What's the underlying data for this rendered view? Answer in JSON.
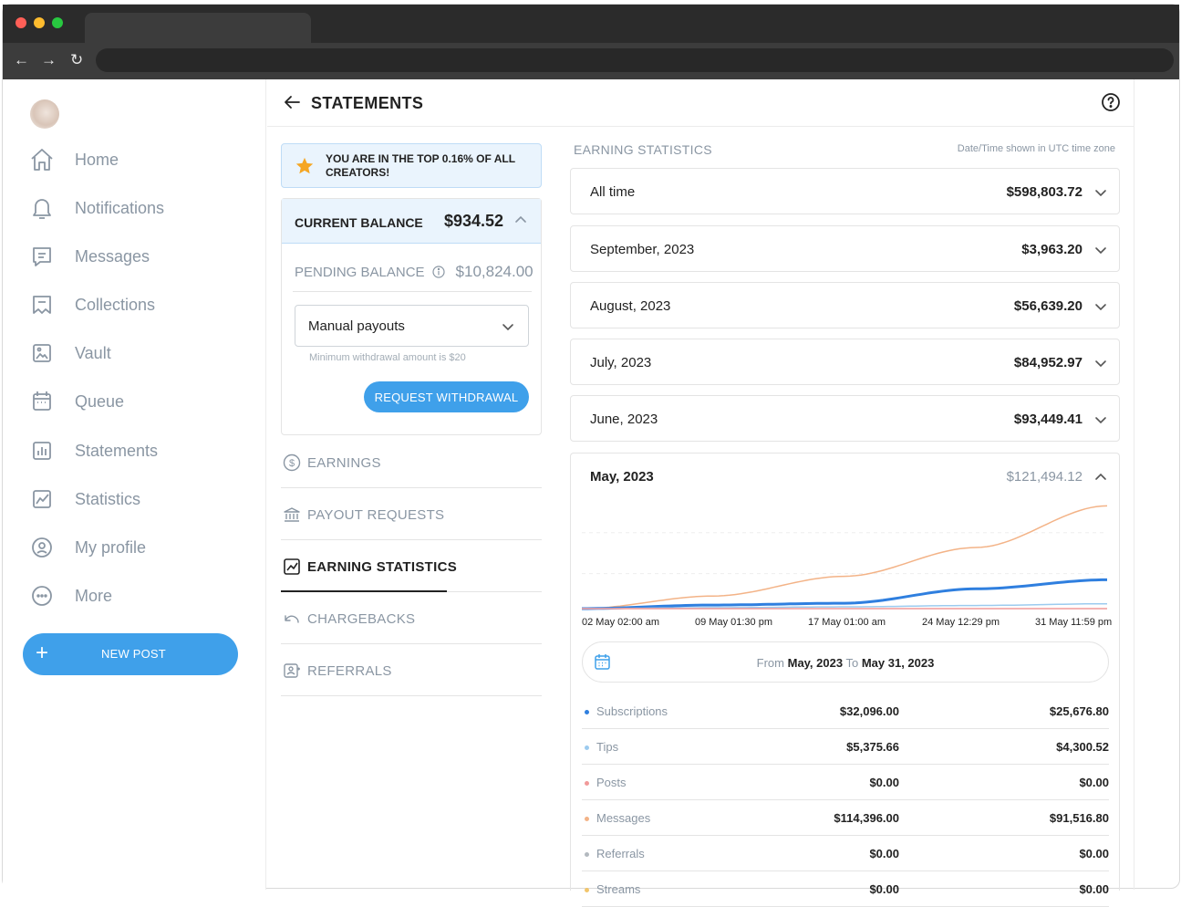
{
  "sidebar": {
    "items": [
      {
        "label": "Home",
        "icon": "home-icon"
      },
      {
        "label": "Notifications",
        "icon": "bell-icon"
      },
      {
        "label": "Messages",
        "icon": "message-icon"
      },
      {
        "label": "Collections",
        "icon": "collections-icon"
      },
      {
        "label": "Vault",
        "icon": "vault-icon"
      },
      {
        "label": "Queue",
        "icon": "calendar-icon"
      },
      {
        "label": "Statements",
        "icon": "statements-icon"
      },
      {
        "label": "Statistics",
        "icon": "statistics-icon"
      },
      {
        "label": "My profile",
        "icon": "profile-icon"
      },
      {
        "label": "More",
        "icon": "more-icon"
      }
    ],
    "new_post": "NEW POST"
  },
  "header": {
    "title": "STATEMENTS"
  },
  "banner": {
    "text": "YOU ARE IN THE TOP 0.16% OF ALL CREATORS!"
  },
  "balance": {
    "current_label": "CURRENT BALANCE",
    "current_amount": "$934.52",
    "pending_label": "PENDING BALANCE",
    "pending_amount": "$10,824.00",
    "payout_mode": "Manual payouts",
    "min_note": "Minimum withdrawal amount is $20",
    "withdraw_label": "REQUEST WITHDRAWAL"
  },
  "menu": [
    {
      "label": "EARNINGS",
      "icon": "dollar-circle-icon"
    },
    {
      "label": "PAYOUT REQUESTS",
      "icon": "bank-icon"
    },
    {
      "label": "EARNING STATISTICS",
      "icon": "chart-icon"
    },
    {
      "label": "CHARGEBACKS",
      "icon": "undo-icon"
    },
    {
      "label": "REFERRALS",
      "icon": "referrals-icon"
    }
  ],
  "stats": {
    "title": "EARNING STATISTICS",
    "utc_note": "Date/Time shown in UTC time zone",
    "periods": [
      {
        "label": "All time",
        "amount": "$598,803.72"
      },
      {
        "label": "September, 2023",
        "amount": "$3,963.20"
      },
      {
        "label": "August, 2023",
        "amount": "$56,639.20"
      },
      {
        "label": "July, 2023",
        "amount": "$84,952.97"
      },
      {
        "label": "June, 2023",
        "amount": "$93,449.41"
      }
    ],
    "expanded": {
      "label": "May, 2023",
      "amount": "$121,494.12",
      "range_from_word": "From",
      "range_from": "May, 2023",
      "range_to_word": "To",
      "range_to": "May 31, 2023",
      "categories": [
        {
          "name": "Subscriptions",
          "gross": "$32,096.00",
          "net": "$25,676.80",
          "color": "#2f7fdf"
        },
        {
          "name": "Tips",
          "gross": "$5,375.66",
          "net": "$4,300.52",
          "color": "#9ccbef"
        },
        {
          "name": "Posts",
          "gross": "$0.00",
          "net": "$0.00",
          "color": "#f19a9a"
        },
        {
          "name": "Messages",
          "gross": "$114,396.00",
          "net": "$91,516.80",
          "color": "#f3b387"
        },
        {
          "name": "Referrals",
          "gross": "$0.00",
          "net": "$0.00",
          "color": "#b3b9bf"
        },
        {
          "name": "Streams",
          "gross": "$0.00",
          "net": "$0.00",
          "color": "#f2c56b"
        }
      ]
    }
  },
  "chart_data": {
    "type": "line",
    "x": [
      "02 May 02:00 am",
      "09 May 01:30 pm",
      "17 May 01:00 am",
      "24 May 12:29 pm",
      "31 May 11:59 pm"
    ],
    "series": [
      {
        "name": "Messages",
        "color": "#f3b387",
        "values": [
          0,
          14000,
          36000,
          68000,
          114396
        ]
      },
      {
        "name": "Subscriptions",
        "color": "#2f7fdf",
        "values": [
          0,
          4000,
          6000,
          22000,
          32096
        ]
      },
      {
        "name": "Tips",
        "color": "#9ccbef",
        "values": [
          0,
          1000,
          2000,
          3500,
          5376
        ]
      },
      {
        "name": "Posts",
        "color": "#f19a9a",
        "values": [
          0,
          0,
          0,
          0,
          0
        ]
      }
    ],
    "ylim": [
      0,
      130000
    ],
    "grid": true
  }
}
